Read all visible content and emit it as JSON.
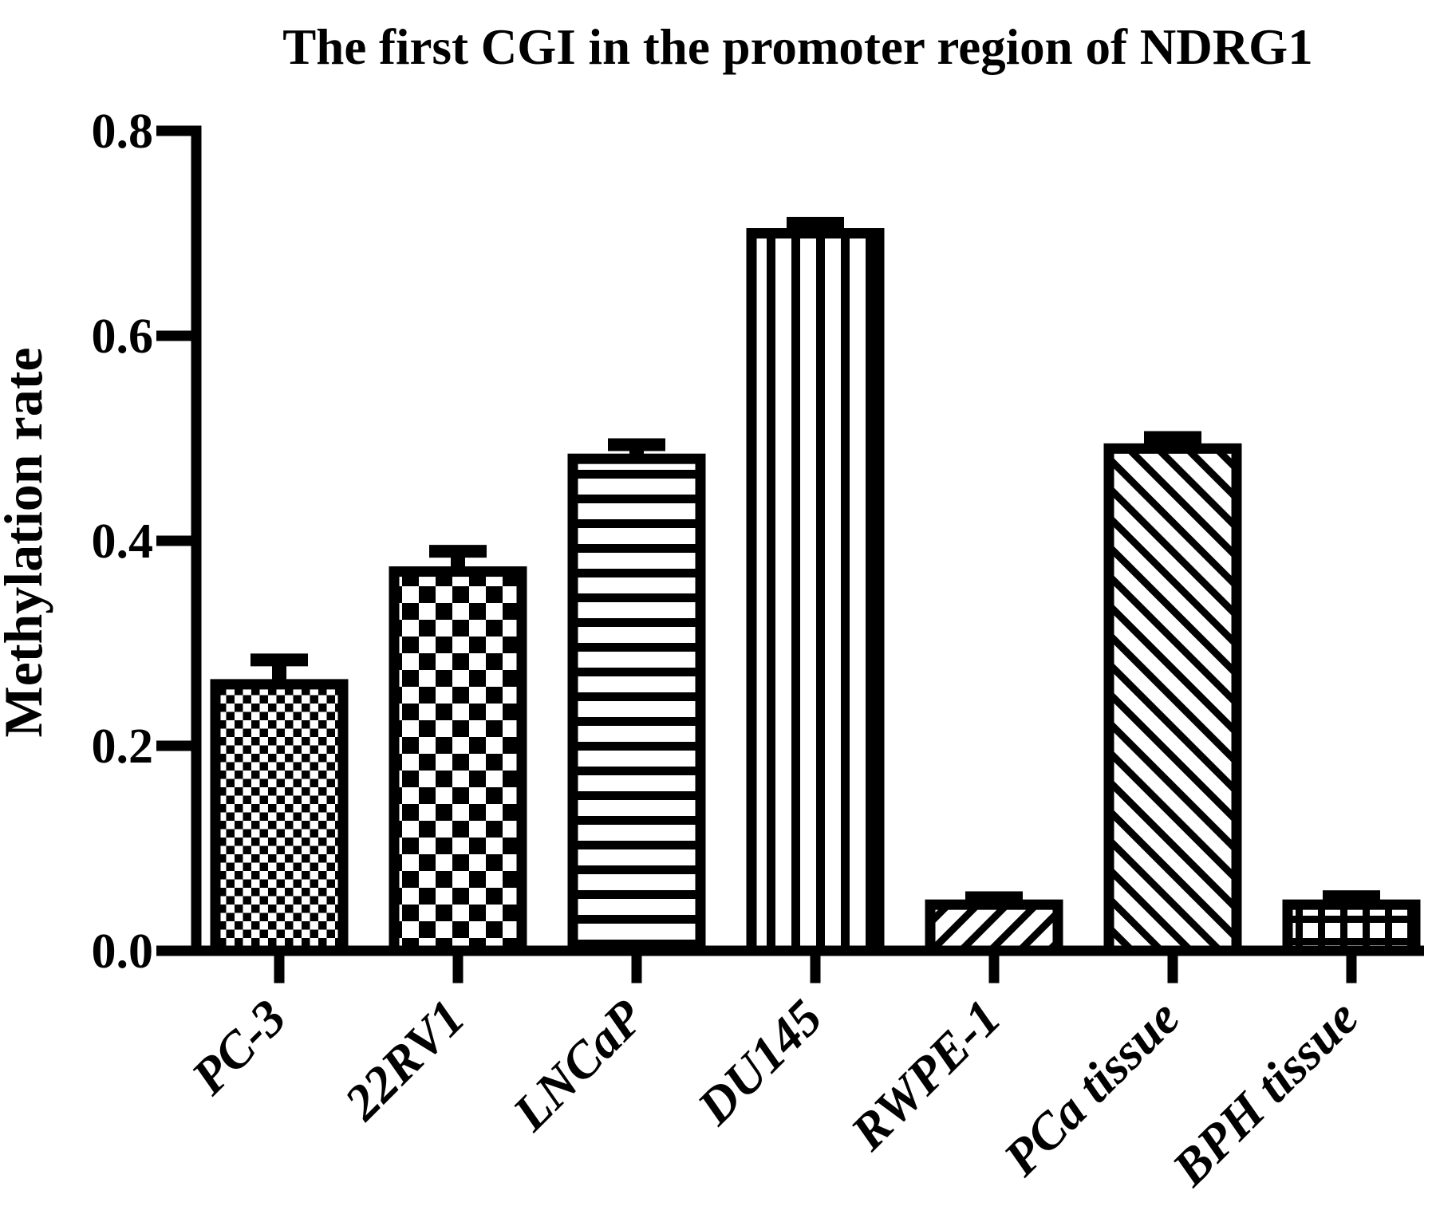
{
  "figure": {
    "background_color": "#ffffff",
    "foreground_color": "#000000"
  },
  "chart_data": {
    "type": "bar",
    "title": "The first CGI in the promoter region of NDRG1",
    "xlabel": "",
    "ylabel": "Methylation rate",
    "ylim": [
      0,
      0.8
    ],
    "yticks": [
      0,
      0.2,
      0.4,
      0.6,
      0.8
    ],
    "ytick_labels": [
      "0.0",
      "0.2",
      "0.4",
      "0.6",
      "0.8"
    ],
    "grid": false,
    "legend": "none",
    "bar_fill_color": "#ffffff",
    "bar_outline_color": "#000000",
    "error_bar_color": "#000000",
    "categories": [
      "PC-3",
      "22RV1",
      "LNCaP",
      "DU145",
      "RWPE-1",
      "PCa tissue",
      "BPH tissue"
    ],
    "series": [
      {
        "name": "Methylation rate",
        "values": [
          0.26,
          0.37,
          0.48,
          0.7,
          0.045,
          0.49,
          0.045
        ],
        "errors_plus": [
          0.03,
          0.026,
          0.02,
          0.016,
          0.013,
          0.017,
          0.014
        ]
      }
    ],
    "bar_patterns": [
      "fine-checkerboard",
      "coarse-checkerboard",
      "horizontal-stripes",
      "vertical-stripes",
      "diagonal-up-hatch",
      "diagonal-down-hatch",
      "grid-crosshatch"
    ],
    "error_bar_style": "upper cap only"
  }
}
